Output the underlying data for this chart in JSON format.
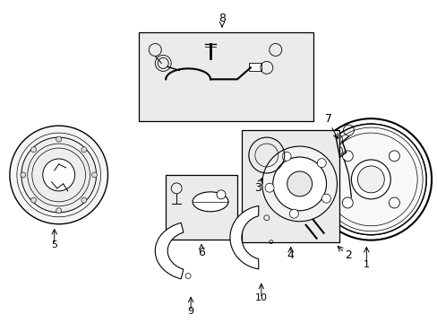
{
  "background_color": "#ffffff",
  "line_color": "#000000",
  "box_fill": "#ebebeb",
  "figsize": [
    4.89,
    3.6
  ],
  "dpi": 100
}
